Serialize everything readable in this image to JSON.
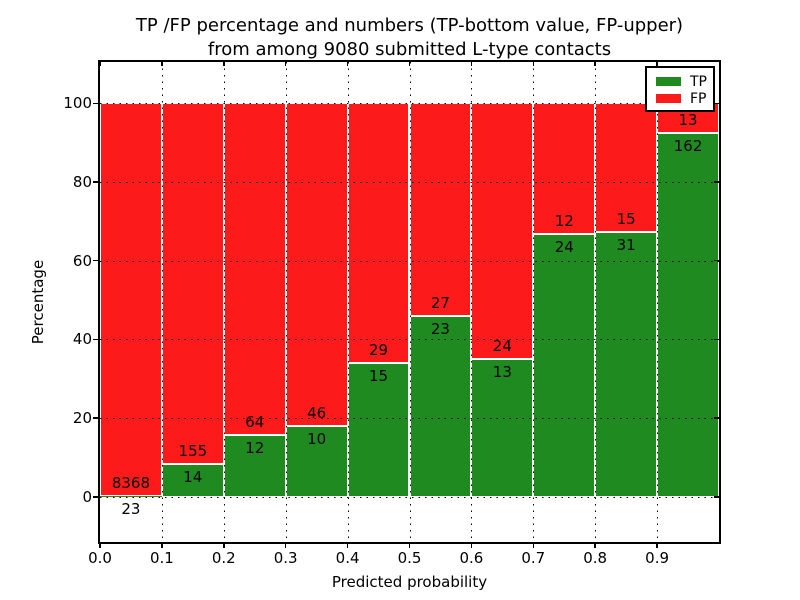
{
  "figure": {
    "title_line1": "TP /FP percentage and numbers (TP-bottom value, FP-upper)",
    "title_line2": "from among 9080 submitted L-type contacts"
  },
  "axes": {
    "xlabel": "Predicted probability",
    "ylabel": "Percentage"
  },
  "legend": {
    "items": [
      {
        "label": "TP",
        "color": "#1f8a1f"
      },
      {
        "label": "FP",
        "color": "#fc1a1a"
      }
    ]
  },
  "chart_data": {
    "type": "bar",
    "stacked": true,
    "title": "TP /FP percentage and numbers (TP-bottom value, FP-upper) from among 9080 submitted L-type contacts",
    "xlabel": "Predicted probability",
    "ylabel": "Percentage",
    "categories": [
      "0.0-0.1",
      "0.1-0.2",
      "0.2-0.3",
      "0.3-0.4",
      "0.4-0.5",
      "0.5-0.6",
      "0.6-0.7",
      "0.7-0.8",
      "0.8-0.9",
      "0.9-1.0"
    ],
    "series": [
      {
        "name": "TP",
        "color": "#1f8a1f",
        "counts": [
          23,
          14,
          12,
          10,
          15,
          23,
          13,
          24,
          31,
          162
        ]
      },
      {
        "name": "FP",
        "color": "#fc1a1a",
        "counts": [
          8368,
          155,
          64,
          46,
          29,
          27,
          24,
          12,
          15,
          13
        ]
      }
    ],
    "note": "bars are stacked to 100%; segment heights are TP/(TP+FP) and FP/(TP+FP) percentages; printed numbers are raw counts (TP below boundary, FP above boundary)",
    "total_contacts": 9080,
    "xticks": [
      "0.0",
      "0.1",
      "0.2",
      "0.3",
      "0.4",
      "0.5",
      "0.6",
      "0.7",
      "0.8",
      "0.9"
    ],
    "yticks": [
      0,
      20,
      40,
      60,
      80,
      100
    ],
    "ylim": [
      -11.5,
      110.5
    ],
    "xlim": [
      0,
      1
    ],
    "grid": "dotted black horizontal at yticks and vertical at xticks",
    "legend_position": "upper right",
    "bar_edge_color": "#ffffff"
  }
}
